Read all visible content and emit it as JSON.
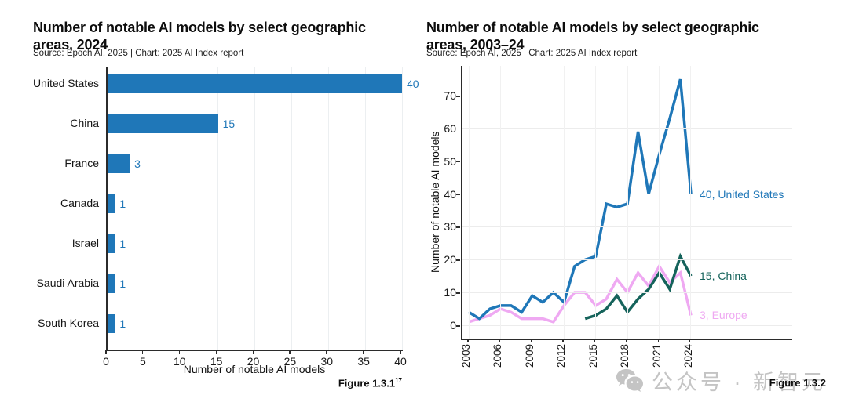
{
  "watermark": {
    "text": "公众号 · 新智元",
    "icon": "wechat-icon"
  },
  "chart_data": [
    {
      "type": "bar",
      "orientation": "horizontal",
      "title": "Number of notable AI models by select geographic areas, 2024",
      "source": "Source: Epoch AI, 2025 | Chart: 2025 AI Index report",
      "figure_label": "Figure 1.3.1",
      "figure_superscript": "17",
      "categories": [
        "United States",
        "China",
        "France",
        "Canada",
        "Israel",
        "Saudi Arabia",
        "South Korea"
      ],
      "values": [
        40,
        15,
        3,
        1,
        1,
        1,
        1
      ],
      "xlabel": "Number of notable AI models",
      "xticks": [
        0,
        5,
        10,
        15,
        20,
        25,
        30,
        35,
        40
      ],
      "xlim": [
        0,
        40
      ],
      "grid": "vertical, faint",
      "bar_color": "#1F77B8",
      "value_label_color": "#1F77B8"
    },
    {
      "type": "line",
      "title": "Number of notable AI models by select geographic areas, 2003–24",
      "source": "Source: Epoch AI, 2025 | Chart: 2025 AI Index report",
      "figure_label": "Figure 1.3.2",
      "ylabel": "Number of notable AI models",
      "yticks": [
        0,
        10,
        20,
        30,
        40,
        50,
        60,
        70
      ],
      "xticks": [
        2003,
        2006,
        2009,
        2012,
        2015,
        2018,
        2021,
        2024
      ],
      "xlim": [
        2003,
        2024
      ],
      "ylim": [
        0,
        78
      ],
      "grid": "both, faint",
      "legend": "line-end labels",
      "series": [
        {
          "name": "Europe",
          "color": "#EFA9F2",
          "end_label": "3, Europe",
          "x": [
            2003,
            2004,
            2005,
            2006,
            2007,
            2008,
            2009,
            2010,
            2011,
            2012,
            2013,
            2014,
            2015,
            2016,
            2017,
            2018,
            2019,
            2020,
            2021,
            2022,
            2023,
            2024
          ],
          "y": [
            1,
            2,
            3,
            5,
            4,
            2,
            2,
            2,
            1,
            6,
            10,
            10,
            6,
            8,
            14,
            10,
            16,
            12,
            18,
            13,
            16,
            3
          ]
        },
        {
          "name": "United States",
          "color": "#1F77B8",
          "end_label": "40, United States",
          "x": [
            2003,
            2004,
            2005,
            2006,
            2007,
            2008,
            2009,
            2010,
            2011,
            2012,
            2013,
            2014,
            2015,
            2016,
            2017,
            2018,
            2019,
            2020,
            2021,
            2022,
            2023,
            2024
          ],
          "y": [
            4,
            2,
            5,
            6,
            6,
            4,
            9,
            7,
            10,
            7,
            18,
            20,
            21,
            37,
            36,
            37,
            59,
            40,
            52,
            63,
            75,
            40
          ]
        },
        {
          "name": "China",
          "color": "#15635B",
          "end_label": "15, China",
          "x": [
            2014,
            2015,
            2016,
            2017,
            2018,
            2019,
            2020,
            2021,
            2022,
            2023,
            2024
          ],
          "y": [
            2,
            3,
            5,
            9,
            4,
            8,
            11,
            16,
            11,
            21,
            15
          ]
        }
      ]
    }
  ]
}
